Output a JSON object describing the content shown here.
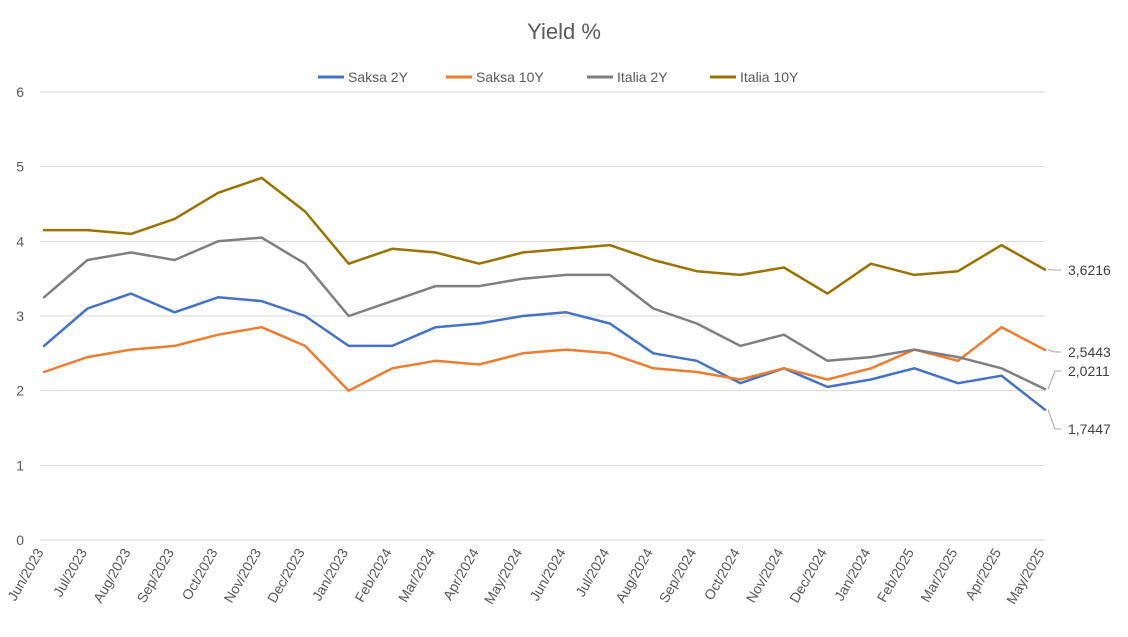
{
  "chart_data": {
    "type": "line",
    "title": "Yield %",
    "xlabel": "",
    "ylabel": "",
    "ylim": [
      0,
      6
    ],
    "yticks": [
      "0",
      "1",
      "2",
      "3",
      "4",
      "5",
      "6"
    ],
    "grid": true,
    "legend_position": "top",
    "x_tick_labels": [
      "Jun/2023",
      "Jul/2023",
      "Aug/2023",
      "Sep/2023",
      "Oct/2023",
      "Nov/2023",
      "Dec/2023",
      "Jan/2023",
      "Feb/2024",
      "Mar/2024",
      "Apr/2024",
      "May/2024",
      "Jun/2024",
      "Jul/2024",
      "Aug/2024",
      "Sep/2024",
      "Oct/2024",
      "Nov/2024",
      "Dec/2024",
      "Jan/2024",
      "Feb/2025",
      "Mar/2025",
      "Apr/2025",
      "May/2025"
    ],
    "x": [
      "Jun/2023",
      "Jul/2023",
      "Aug/2023",
      "Sep/2023",
      "Oct/2023",
      "Nov/2023",
      "Dec/2023",
      "Jan/2023",
      "Feb/2024",
      "Mar/2024",
      "Apr/2024",
      "May/2024",
      "Jun/2024",
      "Jul/2024",
      "Aug/2024",
      "Sep/2024",
      "Oct/2024",
      "Nov/2024",
      "Dec/2024",
      "Jan/2024",
      "Feb/2025",
      "Mar/2025",
      "Apr/2025",
      "May/2025"
    ],
    "series": [
      {
        "name": "Saksa 2Y",
        "color": "#4472C4",
        "values": [
          2.6,
          3.1,
          3.3,
          3.05,
          3.25,
          3.2,
          3.0,
          2.6,
          2.6,
          2.85,
          2.9,
          3.0,
          3.05,
          2.9,
          2.5,
          2.4,
          2.1,
          2.3,
          2.05,
          2.15,
          2.3,
          2.1,
          2.2,
          1.7447
        ],
        "end_label": "1,7447"
      },
      {
        "name": "Saksa 10Y",
        "color": "#ED7D31",
        "values": [
          2.25,
          2.45,
          2.55,
          2.6,
          2.75,
          2.85,
          2.6,
          2.0,
          2.3,
          2.4,
          2.35,
          2.5,
          2.55,
          2.5,
          2.3,
          2.25,
          2.15,
          2.3,
          2.15,
          2.3,
          2.55,
          2.4,
          2.85,
          2.5443
        ],
        "end_label": "2,5443"
      },
      {
        "name": "Italia 2Y",
        "color": "#7F7F7F",
        "values": [
          3.25,
          3.75,
          3.85,
          3.75,
          4.0,
          4.05,
          3.7,
          3.0,
          3.2,
          3.4,
          3.4,
          3.5,
          3.55,
          3.55,
          3.1,
          2.9,
          2.6,
          2.75,
          2.4,
          2.45,
          2.55,
          2.45,
          2.3,
          2.0211
        ],
        "end_label": "2,0211"
      },
      {
        "name": "Italia 10Y",
        "color": "#997300",
        "values": [
          4.15,
          4.15,
          4.1,
          4.3,
          4.65,
          4.85,
          4.4,
          3.7,
          3.9,
          3.85,
          3.7,
          3.85,
          3.9,
          3.95,
          3.75,
          3.6,
          3.55,
          3.65,
          3.3,
          3.7,
          3.55,
          3.6,
          3.95,
          3.6216
        ],
        "end_label": "3,6216"
      }
    ]
  }
}
